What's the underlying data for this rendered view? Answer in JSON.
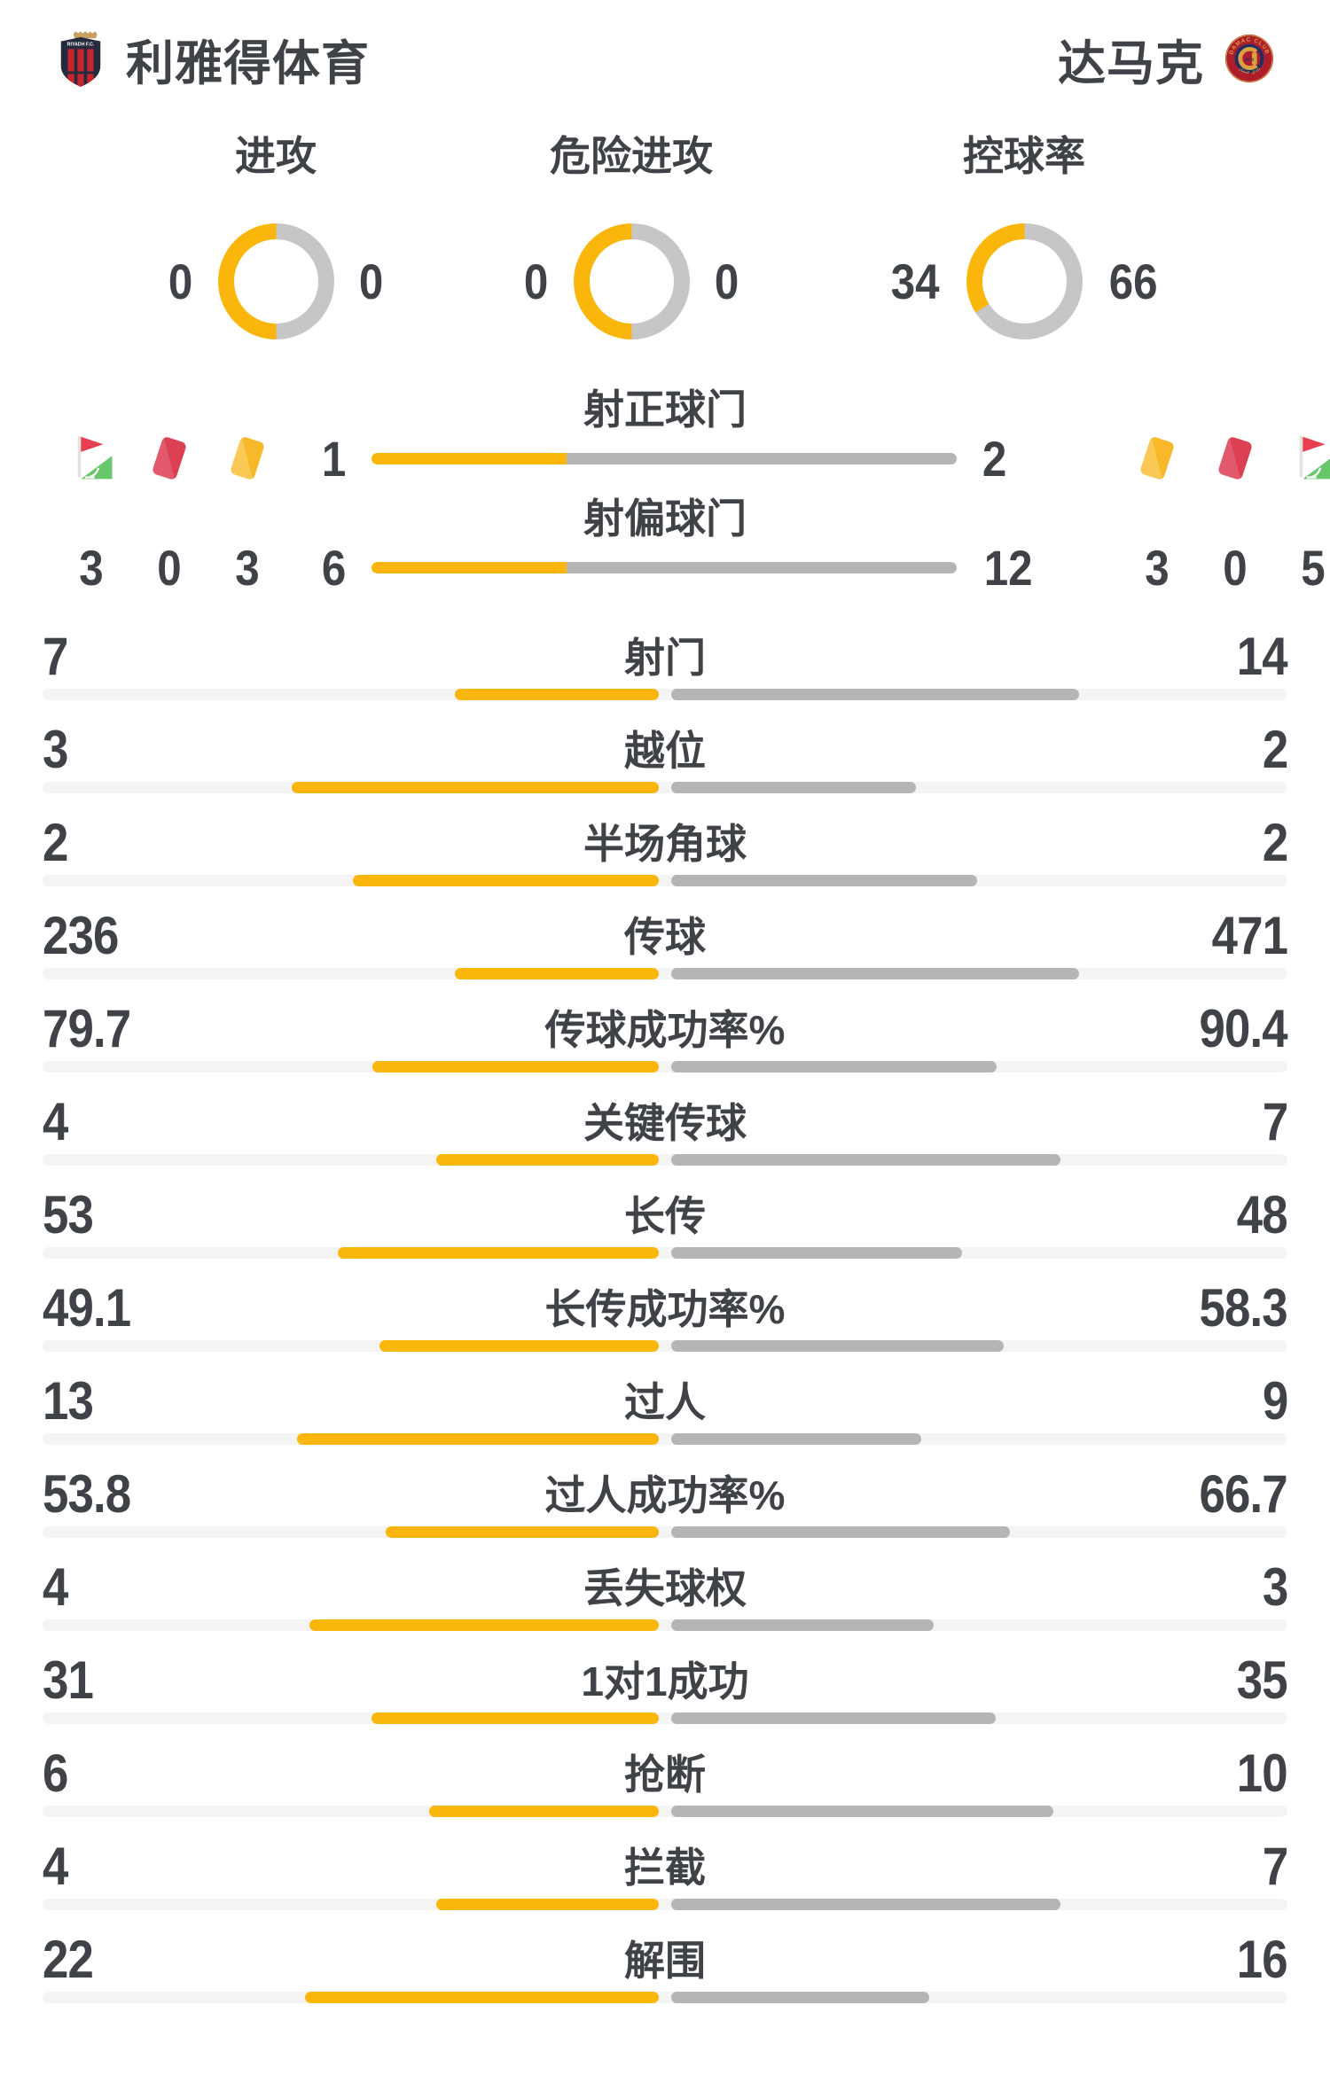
{
  "colors": {
    "accent_yellow": "#FBB60C",
    "bar_gray": "#B5B5B5",
    "donut_gray": "#C6C6C7",
    "track_gray": "#F4F4F4",
    "text": "#3F4247",
    "red_card": "#DC4053",
    "red_card_light": "#E2596B",
    "yellow_card": "#F7B829",
    "yellow_card_light": "#FAC854",
    "flag_red": "#E73E50",
    "flag_green": "#68C66B"
  },
  "icons": {
    "home_badge": "shield-crest",
    "away_badge": "round-crest",
    "corner_flag": "corner-flag",
    "red_card": "red-card",
    "yellow_card": "yellow-card"
  },
  "header": {
    "home_name": "利雅得体育",
    "away_name": "达马克"
  },
  "donuts": [
    {
      "key": "attack",
      "label": "进攻",
      "home": 0,
      "away": 0
    },
    {
      "key": "dangerous-attack",
      "label": "危险进攻",
      "home": 0,
      "away": 0
    },
    {
      "key": "possession",
      "label": "控球率",
      "home": 34,
      "away": 66
    }
  ],
  "shots": {
    "on_target": {
      "key": "shots-on-target",
      "label": "射正球门",
      "home": 1,
      "away": 2
    },
    "off_target": {
      "key": "shots-off-target",
      "label": "射偏球门",
      "home": 6,
      "away": 12
    }
  },
  "discipline": {
    "home": {
      "corner": 3,
      "red": 0,
      "yellow": 3
    },
    "away": {
      "yellow": 3,
      "red": 0,
      "corner": 5
    }
  },
  "stats": [
    {
      "key": "shots",
      "label": "射门",
      "home": 7,
      "away": 14
    },
    {
      "key": "offsides",
      "label": "越位",
      "home": 3,
      "away": 2
    },
    {
      "key": "half-corners",
      "label": "半场角球",
      "home": 2,
      "away": 2
    },
    {
      "key": "passes",
      "label": "传球",
      "home": 236,
      "away": 471
    },
    {
      "key": "pass-success",
      "label": "传球成功率%",
      "home": 79.7,
      "away": 90.4
    },
    {
      "key": "key-passes",
      "label": "关键传球",
      "home": 4,
      "away": 7
    },
    {
      "key": "long-balls",
      "label": "长传",
      "home": 53,
      "away": 48
    },
    {
      "key": "long-ball-success",
      "label": "长传成功率%",
      "home": 49.1,
      "away": 58.3
    },
    {
      "key": "dribbles",
      "label": "过人",
      "home": 13,
      "away": 9
    },
    {
      "key": "dribble-success",
      "label": "过人成功率%",
      "home": 53.8,
      "away": 66.7
    },
    {
      "key": "possession-lost",
      "label": "丢失球权",
      "home": 4,
      "away": 3
    },
    {
      "key": "one-on-one-won",
      "label": "1对1成功",
      "home": 31,
      "away": 35
    },
    {
      "key": "tackles",
      "label": "抢断",
      "home": 6,
      "away": 10
    },
    {
      "key": "interceptions",
      "label": "拦截",
      "home": 4,
      "away": 7
    },
    {
      "key": "clearances",
      "label": "解围",
      "home": 22,
      "away": 16
    }
  ]
}
